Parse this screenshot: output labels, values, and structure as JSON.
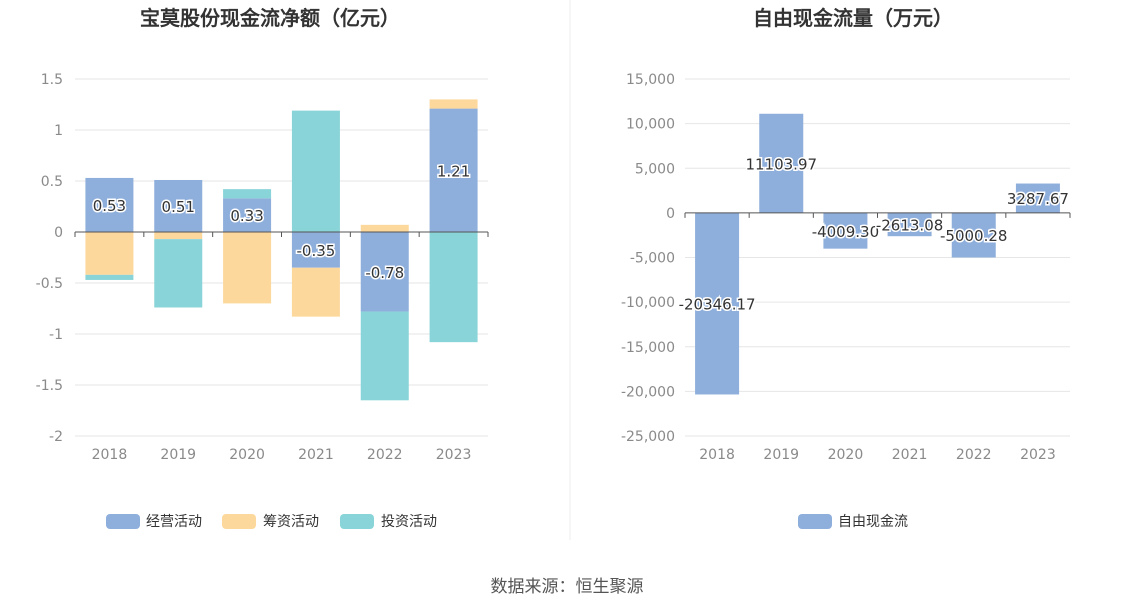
{
  "source": "数据来源：恒生聚源",
  "colors": {
    "operating": "#8eaedc",
    "financing": "#fdd89c",
    "investing": "#88d4d8",
    "fcf": "#8eaedc",
    "grid": "#e6e6e6",
    "axis": "#555555"
  },
  "chart_data": [
    {
      "type": "bar",
      "stacked": true,
      "title": "宝莫股份现金流净额（亿元）",
      "categories": [
        "2018",
        "2019",
        "2020",
        "2021",
        "2022",
        "2023"
      ],
      "series": [
        {
          "name": "经营活动",
          "color_key": "operating",
          "values": [
            0.53,
            0.51,
            0.33,
            -0.35,
            -0.78,
            1.21
          ]
        },
        {
          "name": "筹资活动",
          "color_key": "financing",
          "values": [
            -0.42,
            -0.07,
            -0.7,
            -0.48,
            0.07,
            0.09
          ]
        },
        {
          "name": "投资活动",
          "color_key": "investing",
          "values": [
            -0.05,
            -0.67,
            0.09,
            1.19,
            -0.87,
            -1.08
          ]
        }
      ],
      "data_labels": [
        "0.53",
        "0.51",
        "0.33",
        "-0.35",
        "-0.78",
        "1.21"
      ],
      "ylim": [
        -2,
        1.5
      ],
      "yticks": [
        1.5,
        1,
        0.5,
        0,
        -0.5,
        -1,
        -1.5,
        -2
      ],
      "ytick_labels": [
        "1.5",
        "1",
        "0.5",
        "0",
        "-0.5",
        "-1",
        "-1.5",
        "-2"
      ],
      "grid": true,
      "legend": "bottom"
    },
    {
      "type": "bar",
      "title": "自由现金流量（万元）",
      "categories": [
        "2018",
        "2019",
        "2020",
        "2021",
        "2022",
        "2023"
      ],
      "series": [
        {
          "name": "自由现金流",
          "color_key": "fcf",
          "values": [
            -20346.17,
            11103.97,
            -4009.3,
            -2613.08,
            -5000.28,
            3287.67
          ]
        }
      ],
      "data_labels": [
        "-20346.17",
        "11103.97",
        "-4009.30",
        "-2613.08",
        "-5000.28",
        "3287.67"
      ],
      "ylim": [
        -25000,
        15000
      ],
      "yticks": [
        15000,
        10000,
        5000,
        0,
        -5000,
        -10000,
        -15000,
        -20000,
        -25000
      ],
      "ytick_labels": [
        "15,000",
        "10,000",
        "5,000",
        "0",
        "-5,000",
        "-10,000",
        "-15,000",
        "-20,000",
        "-25,000"
      ],
      "grid": true,
      "legend": "bottom"
    }
  ]
}
